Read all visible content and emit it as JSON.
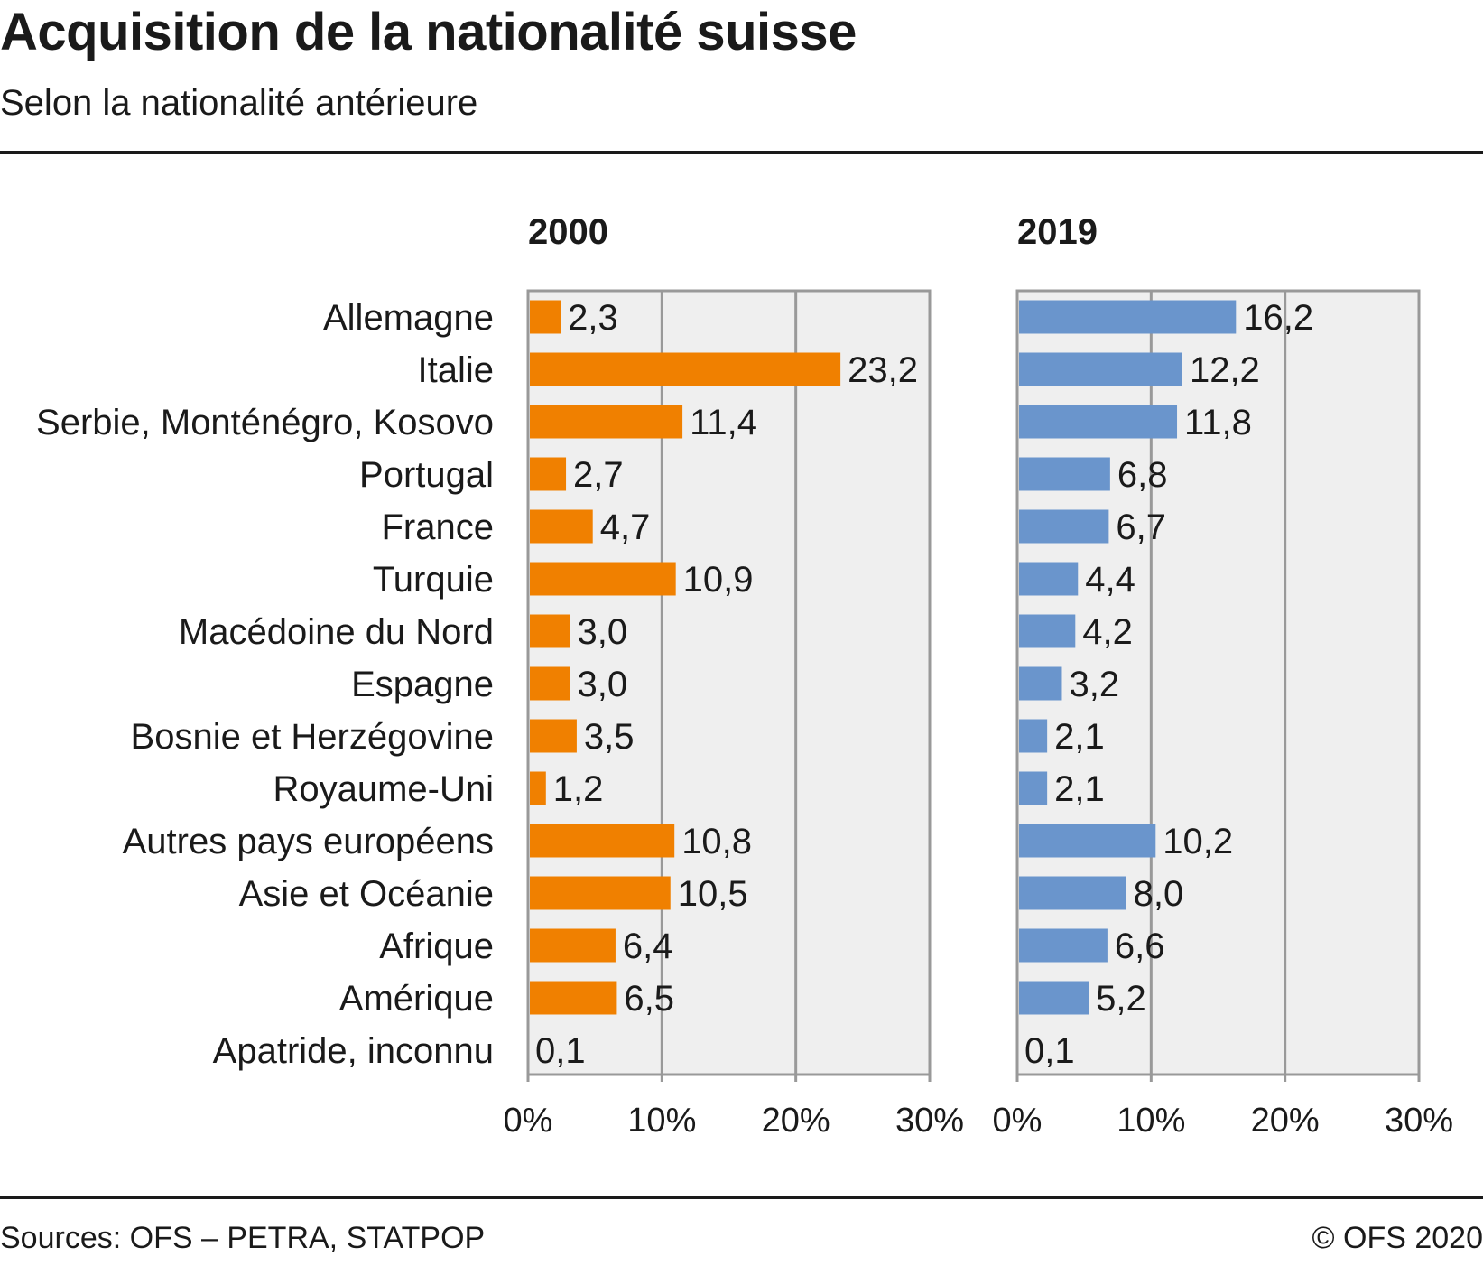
{
  "header": {
    "title": "Acquisition de la nationalité suisse",
    "subtitle": "Selon la nationalité antérieure"
  },
  "footer": {
    "source": "Sources: OFS – PETRA, STATPOP",
    "copyright": "© OFS 2020"
  },
  "chart_data": {
    "type": "bar",
    "orientation": "horizontal",
    "categories": [
      "Allemagne",
      "Italie",
      "Serbie, Monténégro, Kosovo",
      "Portugal",
      "France",
      "Turquie",
      "Macédoine du Nord",
      "Espagne",
      "Bosnie et Herzégovine",
      "Royaume-Uni",
      "Autres pays européens",
      "Asie et Océanie",
      "Afrique",
      "Amérique",
      "Apatride, inconnu"
    ],
    "series": [
      {
        "name": "2000",
        "color": "#f08000",
        "values": [
          2.3,
          23.2,
          11.4,
          2.7,
          4.7,
          10.9,
          3.0,
          3.0,
          3.5,
          1.2,
          10.8,
          10.5,
          6.4,
          6.5,
          0.1
        ],
        "labels": [
          "2,3",
          "23,2",
          "11,4",
          "2,7",
          "4,7",
          "10,9",
          "3,0",
          "3,0",
          "3,5",
          "1,2",
          "10,8",
          "10,5",
          "6,4",
          "6,5",
          "0,1"
        ]
      },
      {
        "name": "2019",
        "color": "#6a95cc",
        "values": [
          16.2,
          12.2,
          11.8,
          6.8,
          6.7,
          4.4,
          4.2,
          3.2,
          2.1,
          2.1,
          10.2,
          8.0,
          6.6,
          5.2,
          0.1
        ],
        "labels": [
          "16,2",
          "12,2",
          "11,8",
          "6,8",
          "6,7",
          "4,4",
          "4,2",
          "3,2",
          "2,1",
          "2,1",
          "10,2",
          "8,0",
          "6,6",
          "5,2",
          "0,1"
        ]
      }
    ],
    "xlim": [
      0,
      30
    ],
    "xticks": [
      "0%",
      "10%",
      "20%",
      "30%"
    ],
    "grid": true,
    "plot_background": "#efefef",
    "gridline_color": "#999999"
  }
}
